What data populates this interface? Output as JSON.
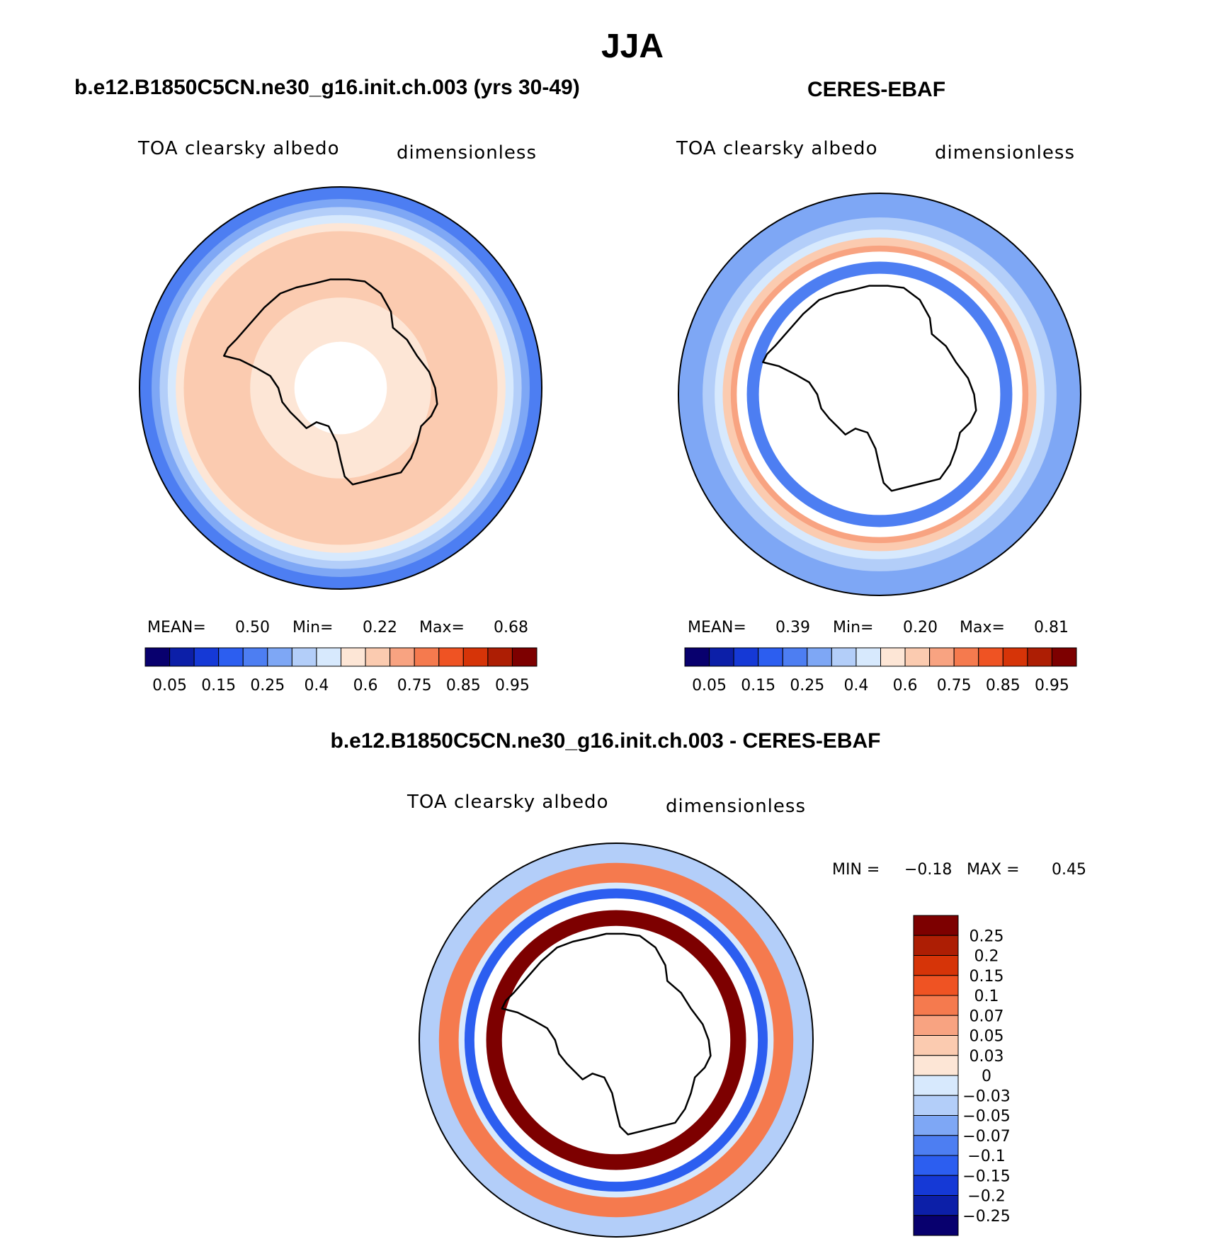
{
  "page_title": "JJA",
  "panels": {
    "left": {
      "title": "b.e12.B1850C5CN.ne30_g16.init.ch.003 (yrs 30-49)",
      "variable": "TOA clearsky albedo",
      "units": "dimensionless",
      "mean_label": "MEAN=",
      "mean": "0.50",
      "min_label": "Min=",
      "min": "0.22",
      "max_label": "Max=",
      "max": "0.68"
    },
    "right": {
      "title": "CERES-EBAF",
      "variable": "TOA clearsky albedo",
      "units": "dimensionless",
      "mean_label": "MEAN=",
      "mean": "0.39",
      "min_label": "Min=",
      "min": "0.20",
      "max_label": "Max=",
      "max": "0.81"
    },
    "diff": {
      "title": "b.e12.B1850C5CN.ne30_g16.init.ch.003 - CERES-EBAF",
      "variable": "TOA clearsky albedo",
      "units": "dimensionless",
      "min_label": "MIN =",
      "min": "−0.18",
      "max_label": "MAX =",
      "max": "0.45"
    }
  },
  "chart_data": [
    {
      "type": "heatmap",
      "projection": "south-polar-stereographic",
      "title": "b.e12.B1850C5CN.ne30_g16.init.ch.003 (yrs 30-49)",
      "variable": "TOA clearsky albedo",
      "units": "dimensionless",
      "stats": {
        "mean": 0.5,
        "min": 0.22,
        "max": 0.68
      },
      "levels": [
        0.05,
        0.1,
        0.15,
        0.2,
        0.25,
        0.3,
        0.4,
        0.5,
        0.6,
        0.7,
        0.75,
        0.8,
        0.85,
        0.9,
        0.95
      ],
      "tick_labels": [
        "0.05",
        "0.15",
        "0.25",
        "0.4",
        "0.6",
        "0.75",
        "0.85",
        "0.95"
      ],
      "colors": [
        "#08006e",
        "#0c1fa8",
        "#1539d6",
        "#2c5ef0",
        "#4d7ef2",
        "#7ea7f5",
        "#b3cef9",
        "#d7e9fd",
        "#fde6d6",
        "#fbcbb0",
        "#f8a381",
        "#f57a4e",
        "#ef5323",
        "#d63408",
        "#ad1e04",
        "#7d0000"
      ],
      "field": {
        "rings": [
          {
            "r_frac": [
              0.0,
              0.23
            ],
            "color": "#ffffff"
          },
          {
            "r_frac": [
              0.23,
              0.45
            ],
            "color": "#fde6d6"
          },
          {
            "r_frac": [
              0.45,
              0.78
            ],
            "color": "#fbcbb0"
          },
          {
            "r_frac": [
              0.78,
              0.82
            ],
            "color": "#fde6d6"
          },
          {
            "r_frac": [
              0.82,
              0.86
            ],
            "color": "#d7e9fd"
          },
          {
            "r_frac": [
              0.86,
              0.9
            ],
            "color": "#b3cef9"
          },
          {
            "r_frac": [
              0.9,
              0.94
            ],
            "color": "#7ea7f5"
          },
          {
            "r_frac": [
              0.94,
              1.0
            ],
            "color": "#4d7ef2"
          }
        ]
      }
    },
    {
      "type": "heatmap",
      "projection": "south-polar-stereographic",
      "title": "CERES-EBAF",
      "variable": "TOA clearsky albedo",
      "units": "dimensionless",
      "stats": {
        "mean": 0.39,
        "min": 0.2,
        "max": 0.81
      },
      "levels": [
        0.05,
        0.1,
        0.15,
        0.2,
        0.25,
        0.3,
        0.4,
        0.5,
        0.6,
        0.7,
        0.75,
        0.8,
        0.85,
        0.9,
        0.95
      ],
      "tick_labels": [
        "0.05",
        "0.15",
        "0.25",
        "0.4",
        "0.6",
        "0.75",
        "0.85",
        "0.95"
      ],
      "colors": [
        "#08006e",
        "#0c1fa8",
        "#1539d6",
        "#2c5ef0",
        "#4d7ef2",
        "#7ea7f5",
        "#b3cef9",
        "#d7e9fd",
        "#fde6d6",
        "#fbcbb0",
        "#f8a381",
        "#f57a4e",
        "#ef5323",
        "#d63408",
        "#ad1e04",
        "#7d0000"
      ],
      "field": {
        "rings": [
          {
            "r_frac": [
              0.0,
              0.6
            ],
            "color": "#ffffff"
          },
          {
            "r_frac": [
              0.6,
              0.66
            ],
            "color": "#4d7ef2"
          },
          {
            "r_frac": [
              0.66,
              0.71
            ],
            "color": "#ffffff"
          },
          {
            "r_frac": [
              0.71,
              0.74
            ],
            "color": "#f8a381"
          },
          {
            "r_frac": [
              0.74,
              0.78
            ],
            "color": "#fbcbb0"
          },
          {
            "r_frac": [
              0.78,
              0.82
            ],
            "color": "#d7e9fd"
          },
          {
            "r_frac": [
              0.82,
              0.88
            ],
            "color": "#b3cef9"
          },
          {
            "r_frac": [
              0.88,
              1.0
            ],
            "color": "#7ea7f5"
          }
        ]
      }
    },
    {
      "type": "heatmap",
      "projection": "south-polar-stereographic",
      "title": "b.e12.B1850C5CN.ne30_g16.init.ch.003 - CERES-EBAF",
      "variable": "TOA clearsky albedo",
      "units": "dimensionless",
      "stats": {
        "min": -0.18,
        "max": 0.45
      },
      "levels": [
        -0.25,
        -0.2,
        -0.15,
        -0.1,
        -0.07,
        -0.05,
        -0.03,
        0,
        0.03,
        0.05,
        0.07,
        0.1,
        0.15,
        0.2,
        0.25
      ],
      "tick_labels": [
        "0.25",
        "0.2",
        "0.15",
        "0.1",
        "0.07",
        "0.05",
        "0.03",
        "0",
        "−0.03",
        "−0.05",
        "−0.07",
        "−0.1",
        "−0.15",
        "−0.2",
        "−0.25"
      ],
      "colors": [
        "#7d0000",
        "#ad1e04",
        "#d63408",
        "#ef5323",
        "#f57a4e",
        "#f8a381",
        "#fbcbb0",
        "#fde6d6",
        "#d7e9fd",
        "#b3cef9",
        "#7ea7f5",
        "#4d7ef2",
        "#2c5ef0",
        "#1539d6",
        "#0c1fa8",
        "#08006e"
      ],
      "field": {
        "rings": [
          {
            "r_frac": [
              0.0,
              0.58
            ],
            "color": "#ffffff"
          },
          {
            "r_frac": [
              0.58,
              0.66
            ],
            "color": "#7d0000"
          },
          {
            "r_frac": [
              0.66,
              0.72
            ],
            "color": "#ffffff"
          },
          {
            "r_frac": [
              0.72,
              0.77
            ],
            "color": "#2c5ef0"
          },
          {
            "r_frac": [
              0.77,
              0.8
            ],
            "color": "#d7e9fd"
          },
          {
            "r_frac": [
              0.8,
              0.9
            ],
            "color": "#f57a4e"
          },
          {
            "r_frac": [
              0.9,
              1.0
            ],
            "color": "#b3cef9"
          }
        ]
      }
    }
  ]
}
